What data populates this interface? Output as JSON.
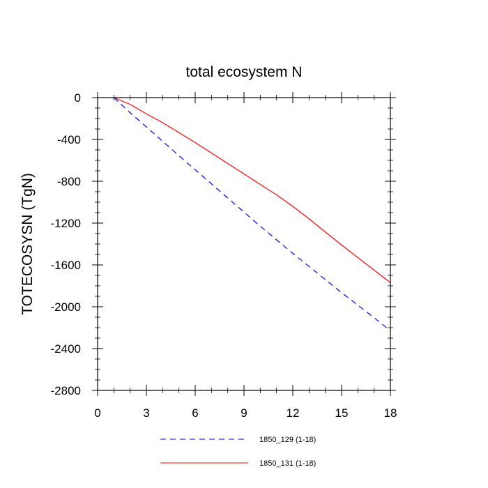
{
  "chart_data": {
    "type": "line",
    "title": "total ecosystem N",
    "xlabel": "",
    "ylabel": "TOTECOSYSN  (TgN)",
    "xlim": [
      0,
      18
    ],
    "ylim": [
      -2800,
      0
    ],
    "x_ticks": [
      0,
      3,
      6,
      9,
      12,
      15,
      18
    ],
    "x_tick_labels": [
      "0",
      "3",
      "6",
      "9",
      "12",
      "15",
      "18"
    ],
    "y_ticks": [
      0,
      -400,
      -800,
      -1200,
      -1600,
      -2000,
      -2400,
      -2800
    ],
    "y_tick_labels": [
      "0",
      "-400",
      "-800",
      "-1200",
      "-1600",
      "-2000",
      "-2400",
      "-2800"
    ],
    "grid": false,
    "legend_position": "bottom-center",
    "series": [
      {
        "name": "1850_129 (1-18)",
        "color": "#0000ff",
        "dash": "dashed",
        "x": [
          1,
          2,
          3,
          4,
          5,
          6,
          7,
          8,
          9,
          10,
          11,
          12,
          13,
          14,
          15,
          16,
          17,
          18
        ],
        "y": [
          0,
          -145,
          -280,
          -418,
          -555,
          -690,
          -825,
          -960,
          -1095,
          -1230,
          -1360,
          -1490,
          -1615,
          -1740,
          -1865,
          -1985,
          -2105,
          -2230
        ]
      },
      {
        "name": "1850_131 (1-18)",
        "color": "#ff0000",
        "dash": "solid",
        "x": [
          1,
          2,
          3,
          4,
          5,
          6,
          7,
          8,
          9,
          10,
          11,
          12,
          13,
          14,
          15,
          16,
          17,
          18
        ],
        "y": [
          0,
          -65,
          -155,
          -240,
          -335,
          -430,
          -530,
          -630,
          -730,
          -830,
          -930,
          -1040,
          -1160,
          -1285,
          -1410,
          -1530,
          -1650,
          -1770
        ]
      }
    ]
  }
}
